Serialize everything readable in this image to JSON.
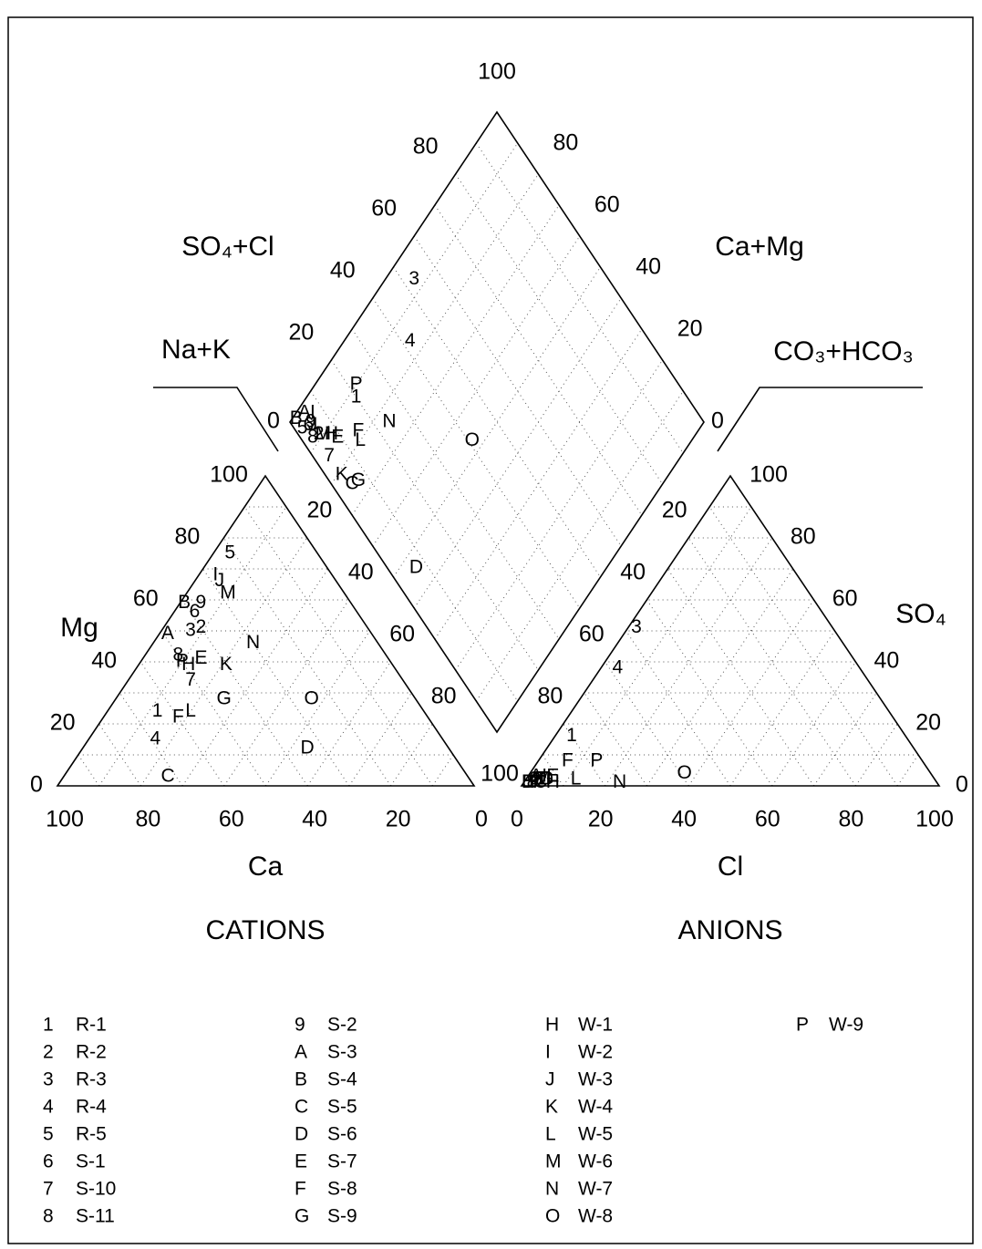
{
  "chart_data": {
    "type": "piper",
    "titles": {
      "so4cl": "SO₄+Cl",
      "camg": "Ca+Mg",
      "nak": "Na+K",
      "co3": "CO₃+HCO₃",
      "mg": "Mg",
      "so4": "SO₄",
      "ca": "Ca",
      "cl": "Cl",
      "cations": "CATIONS",
      "anions": "ANIONS"
    },
    "ticks": {
      "ca": [
        100,
        80,
        60,
        40,
        20,
        0
      ],
      "mg": [
        0,
        20,
        40,
        60,
        80,
        100
      ],
      "cl": [
        0,
        20,
        40,
        60,
        80,
        100
      ],
      "so4": [
        0,
        20,
        40,
        60,
        80,
        100
      ],
      "so4cl": [
        0,
        20,
        40,
        60,
        80,
        100
      ],
      "camg": [
        80,
        60,
        40,
        20,
        0
      ],
      "nak": [
        20,
        40,
        60,
        80,
        100
      ],
      "co3": [
        20,
        40,
        60,
        80
      ]
    },
    "grid": true,
    "samples": [
      {
        "symbol": "1",
        "name": "R-1",
        "ca": 64,
        "mg": 24,
        "cl": 4,
        "so4": 16
      },
      {
        "symbol": "2",
        "name": "R-2",
        "ca": 40,
        "mg": 51,
        "cl": 3,
        "so4": 2
      },
      {
        "symbol": "3",
        "name": "R-3",
        "ca": 43,
        "mg": 50,
        "cl": 2,
        "so4": 51
      },
      {
        "symbol": "4",
        "name": "R-4",
        "ca": 69,
        "mg": 15,
        "cl": 4,
        "so4": 38
      },
      {
        "symbol": "5",
        "name": "R-5",
        "ca": 21,
        "mg": 75,
        "cl": 1,
        "so4": 1
      },
      {
        "symbol": "6",
        "name": "S-1",
        "ca": 39,
        "mg": 56,
        "cl": 2,
        "so4": 2
      },
      {
        "symbol": "7",
        "name": "S-10",
        "ca": 51,
        "mg": 34,
        "cl": 3,
        "so4": 1
      },
      {
        "symbol": "8",
        "name": "S-11",
        "ca": 50,
        "mg": 42,
        "cl": 2,
        "so4": 1
      },
      {
        "symbol": "9",
        "name": "S-2",
        "ca": 36,
        "mg": 59,
        "cl": 3,
        "so4": 2
      },
      {
        "symbol": "A",
        "name": "S-3",
        "ca": 49,
        "mg": 49,
        "cl": 2,
        "so4": 3
      },
      {
        "symbol": "B",
        "name": "S-4",
        "ca": 40,
        "mg": 59,
        "cl": 1,
        "so4": 1
      },
      {
        "symbol": "C",
        "name": "S-5",
        "ca": 72,
        "mg": 3,
        "cl": 4,
        "so4": 1
      },
      {
        "symbol": "D",
        "name": "S-6",
        "ca": 34,
        "mg": 12,
        "cl": 5,
        "so4": 2
      },
      {
        "symbol": "E",
        "name": "S-7",
        "ca": 45,
        "mg": 41,
        "cl": 6,
        "so4": 3
      },
      {
        "symbol": "F",
        "name": "S-8",
        "ca": 60,
        "mg": 22,
        "cl": 7,
        "so4": 8
      },
      {
        "symbol": "G",
        "name": "S-9",
        "ca": 46,
        "mg": 28,
        "cl": 5,
        "so4": 2
      },
      {
        "symbol": "H",
        "name": "W-1",
        "ca": 49,
        "mg": 39,
        "cl": 7,
        "so4": 1
      },
      {
        "symbol": "I",
        "name": "W-2",
        "ca": 28,
        "mg": 68,
        "cl": 4,
        "so4": 3
      },
      {
        "symbol": "J",
        "name": "W-3",
        "ca": 28,
        "mg": 66,
        "cl": 3,
        "so4": 2
      },
      {
        "symbol": "K",
        "name": "W-4",
        "ca": 40,
        "mg": 39,
        "cl": 3,
        "so4": 1
      },
      {
        "symbol": "L",
        "name": "W-5",
        "ca": 56,
        "mg": 24,
        "cl": 12,
        "so4": 2
      },
      {
        "symbol": "M",
        "name": "W-6",
        "ca": 28,
        "mg": 62,
        "cl": 4,
        "so4": 2
      },
      {
        "symbol": "N",
        "name": "W-7",
        "ca": 30,
        "mg": 46,
        "cl": 23,
        "so4": 1
      },
      {
        "symbol": "O",
        "name": "W-8",
        "ca": 25,
        "mg": 28,
        "cl": 37,
        "so4": 4
      },
      {
        "symbol": "P",
        "name": "W-9",
        "ca": 50,
        "mg": 40,
        "cl": 14,
        "so4": 8
      }
    ]
  }
}
